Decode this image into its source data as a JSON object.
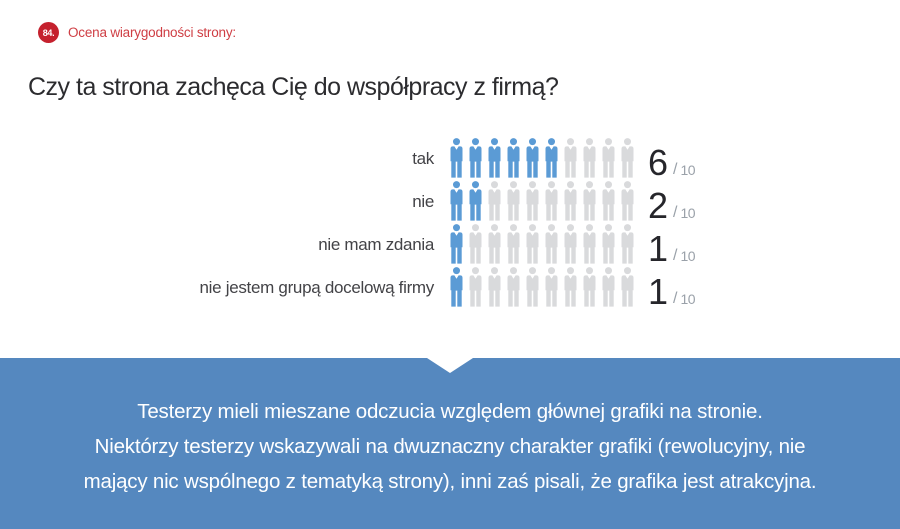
{
  "header": {
    "badge": "84.",
    "category": "Ocena wiarygodności strony:",
    "question": "Czy ta strona zachęca Cię do współpracy z firmą?"
  },
  "chart": {
    "separator": "/",
    "rows": [
      {
        "label": "tak",
        "value": 6,
        "total": 10
      },
      {
        "label": "nie",
        "value": 2,
        "total": 10
      },
      {
        "label": "nie mam zdania",
        "value": 1,
        "total": 10
      },
      {
        "label": "nie jestem grupą docelową firmy",
        "value": 1,
        "total": 10
      }
    ]
  },
  "chart_data": {
    "type": "pictogram",
    "title": "Czy ta strona zachęca Cię do współpracy z firmą?",
    "categories": [
      "tak",
      "nie",
      "nie mam zdania",
      "nie jestem grupą docelową firmy"
    ],
    "values": [
      6,
      2,
      1,
      1
    ],
    "scale_max_per_row": 10,
    "value_label_format": "N / 10",
    "legend_position": "none",
    "grid": false
  },
  "banner": {
    "lines": [
      "Testerzy mieli mieszane odczucia względem głównej grafiki na stronie.",
      "Niektórzy testerzy wskazywali na dwuznaczny charakter grafiki (rewolucyjny, nie",
      "mający nic wspólnego z tematyką strony), inni zaś pisali, że grafika jest atrakcyjna."
    ]
  },
  "colors": {
    "badge_red": "#c5212e",
    "category_red": "#cf3e44",
    "heading_dark": "#2c2c2f",
    "label_gray": "#434347",
    "icon_filled": "#5b9bd5",
    "icon_empty": "#d9dadc",
    "number_dark": "#26262b",
    "fraction_gray": "#9aa1a9",
    "banner_blue": "#5588bf",
    "banner_text": "#ffffff"
  }
}
